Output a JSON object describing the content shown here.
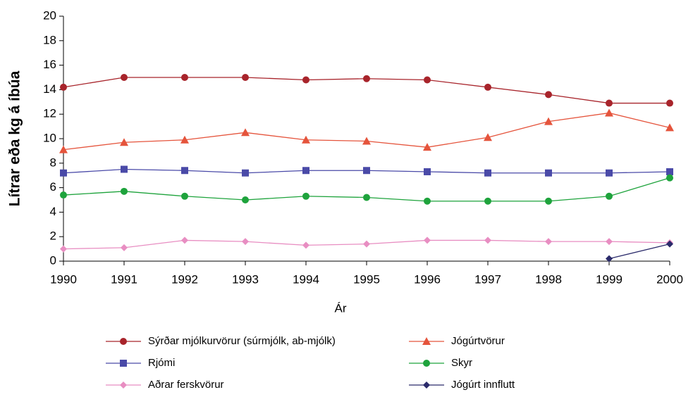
{
  "chart_data": {
    "type": "line",
    "ylabel": "Lítrar eða kg á íbúa",
    "xlabel": "Ár",
    "x": [
      1990,
      1991,
      1992,
      1993,
      1994,
      1995,
      1996,
      1997,
      1998,
      1999,
      2000
    ],
    "xlim": [
      1990,
      2000
    ],
    "xticks": [
      1990,
      1991,
      1992,
      1993,
      1994,
      1995,
      1996,
      1997,
      1998,
      1999,
      2000
    ],
    "ylim": [
      0,
      20
    ],
    "yticks": [
      0,
      2,
      4,
      6,
      8,
      10,
      12,
      14,
      16,
      18,
      20
    ],
    "grid": false,
    "legend": "bottom",
    "series": [
      {
        "name": "Sýrðar mjólkurvörur (súrmjólk, ab-mjólk)",
        "color": "#a8242b",
        "marker": "circle",
        "values": [
          14.2,
          15.0,
          15.0,
          15.0,
          14.8,
          14.9,
          14.8,
          14.2,
          13.6,
          12.9,
          12.9
        ]
      },
      {
        "name": "Jógúrtvörur",
        "color": "#e5543c",
        "marker": "triangle",
        "values": [
          9.1,
          9.7,
          9.9,
          10.5,
          9.9,
          9.8,
          9.3,
          10.1,
          11.4,
          12.1,
          10.9
        ]
      },
      {
        "name": "Rjómi",
        "color": "#4a4aa8",
        "marker": "square",
        "values": [
          7.2,
          7.5,
          7.4,
          7.2,
          7.4,
          7.4,
          7.3,
          7.2,
          7.2,
          7.2,
          7.3
        ]
      },
      {
        "name": "Skyr",
        "color": "#1ea33c",
        "marker": "circle",
        "values": [
          5.4,
          5.7,
          5.3,
          5.0,
          5.3,
          5.2,
          4.9,
          4.9,
          4.9,
          5.3,
          6.8
        ]
      },
      {
        "name": "Aðrar ferskvörur",
        "color": "#e88ec2",
        "marker": "diamond",
        "values": [
          1.0,
          1.1,
          1.7,
          1.6,
          1.3,
          1.4,
          1.7,
          1.7,
          1.6,
          1.6,
          1.5
        ]
      },
      {
        "name": "Jógúrt innflutt",
        "color": "#2b2b6b",
        "marker": "diamond",
        "values": [
          null,
          null,
          null,
          null,
          null,
          null,
          null,
          null,
          null,
          0.2,
          1.4
        ]
      }
    ]
  }
}
